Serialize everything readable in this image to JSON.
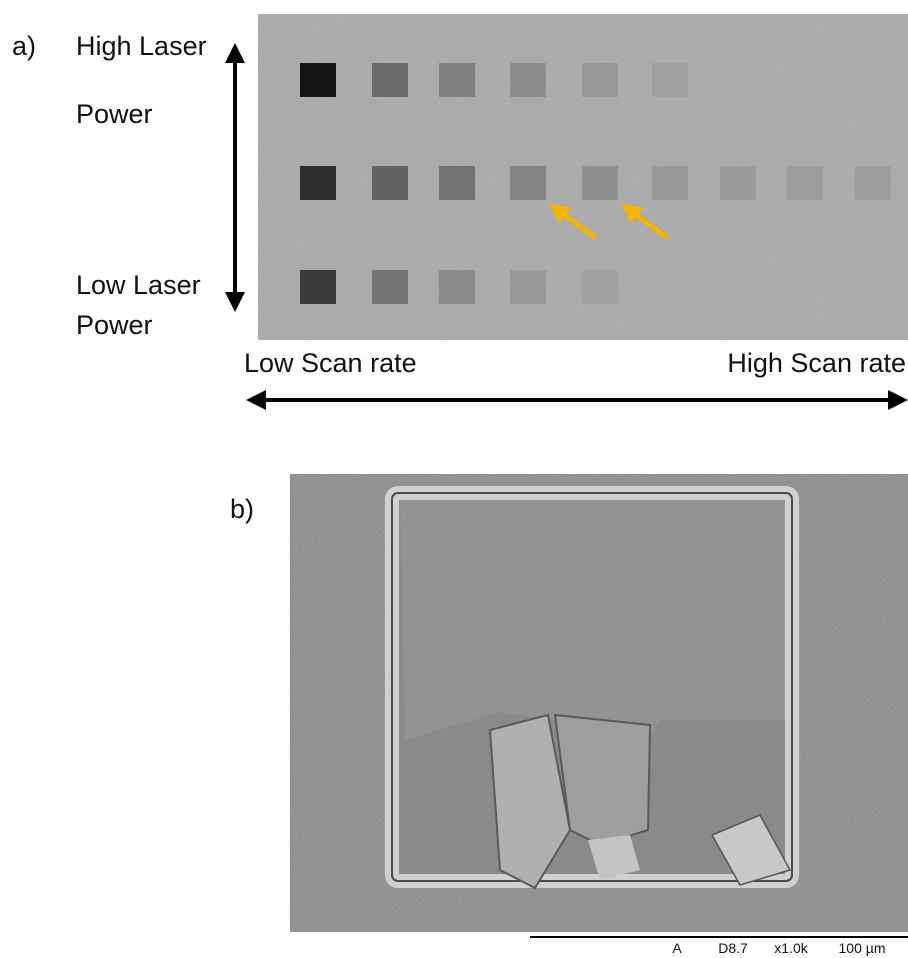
{
  "panel_a": {
    "label": "a)",
    "top_label": [
      "High Laser",
      "Power"
    ],
    "bottom_label": [
      "Low Laser",
      "Power"
    ],
    "left_label": "Low Scan rate",
    "right_label": "High Scan rate"
  },
  "panel_b": {
    "label": "b)",
    "scale_bar": [
      "A",
      "D8.7",
      "x1.0k",
      "100 µm"
    ]
  }
}
